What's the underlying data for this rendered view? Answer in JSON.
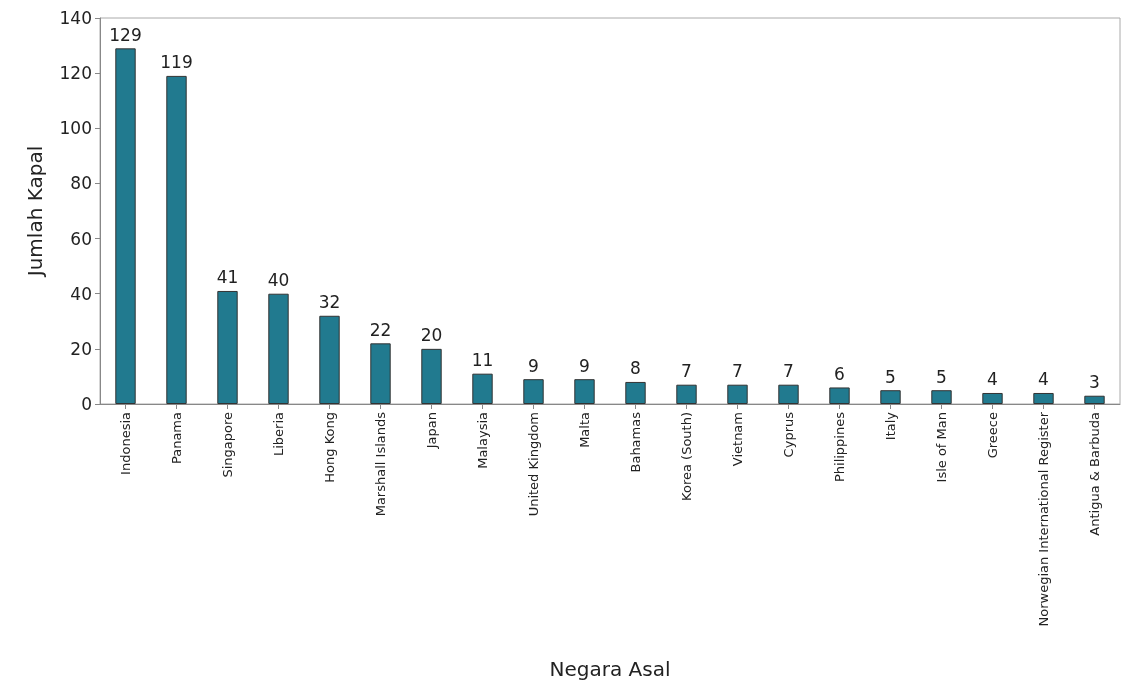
{
  "chart_data": {
    "type": "bar",
    "xlabel": "Negara Asal",
    "ylabel": "Jumlah Kapal",
    "categories": [
      "Indonesia",
      "Panama",
      "Singapore",
      "Liberia",
      "Hong Kong",
      "Marshall Islands",
      "Japan",
      "Malaysia",
      "United Kingdom",
      "Malta",
      "Bahamas",
      "Korea (South)",
      "Vietnam",
      "Cyprus",
      "Philippines",
      "Italy",
      "Isle of Man",
      "Greece",
      "Norwegian International Register",
      "Antigua & Barbuda"
    ],
    "values": [
      129,
      119,
      41,
      40,
      32,
      22,
      20,
      11,
      9,
      9,
      8,
      7,
      7,
      7,
      6,
      5,
      5,
      4,
      4,
      3
    ],
    "color": "#217a8f",
    "ylim": [
      0,
      140
    ],
    "yticks": [
      0,
      20,
      40,
      60,
      80,
      100,
      120,
      140
    ],
    "data_labels": true,
    "grid": false
  }
}
